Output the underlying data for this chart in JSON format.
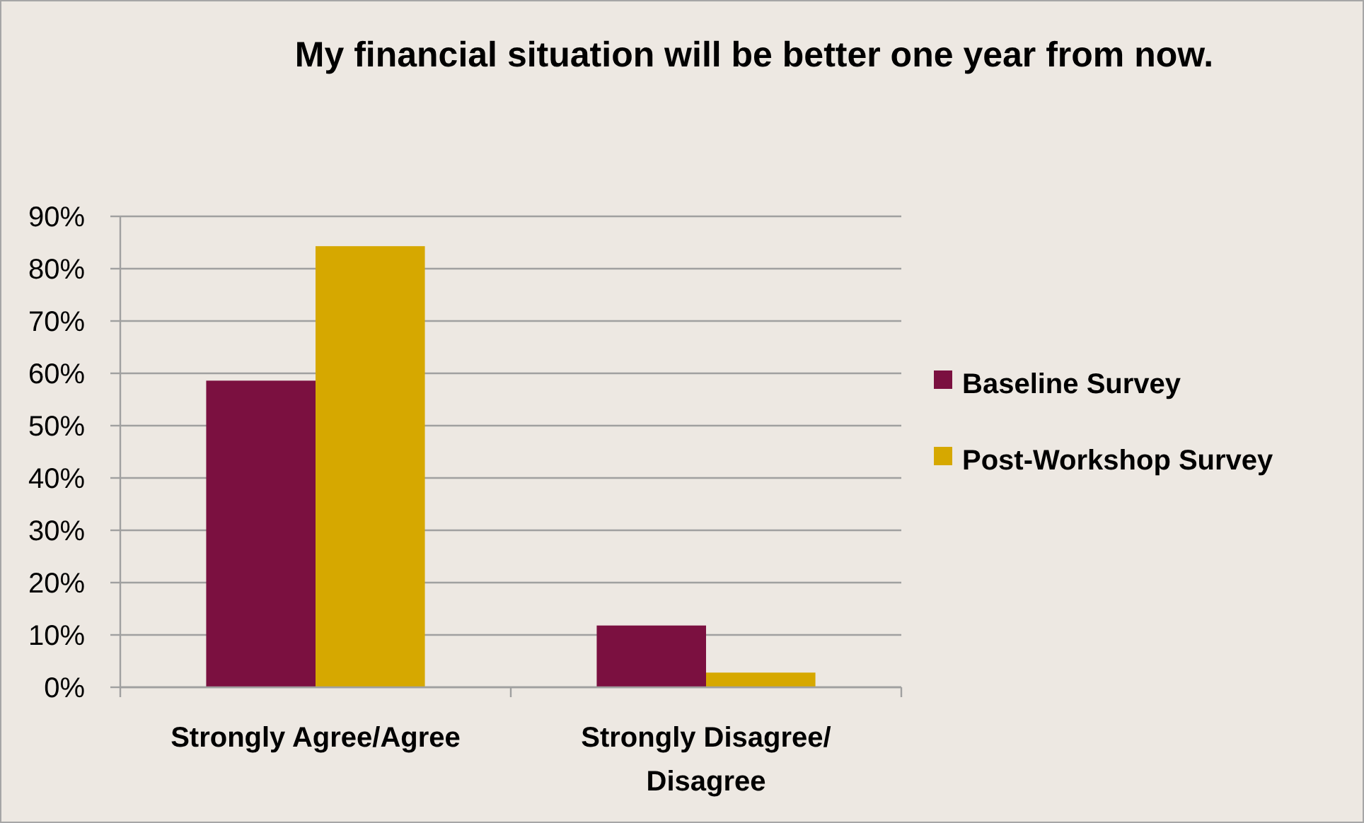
{
  "chart_data": {
    "type": "bar",
    "title": "My financial situation will be better one year from now.",
    "categories": [
      "Strongly Agree/Agree",
      "Strongly Disagree/ Disagree"
    ],
    "series": [
      {
        "name": "Baseline Survey",
        "color": "#7b1040",
        "values": [
          58.6,
          11.8
        ]
      },
      {
        "name": "Post-Workshop Survey",
        "color": "#d6a800",
        "values": [
          84.3,
          2.8
        ]
      }
    ],
    "ylim": [
      0,
      90
    ],
    "yticks": [
      {
        "value": 0,
        "label": "0%"
      },
      {
        "value": 10,
        "label": "10%"
      },
      {
        "value": 20,
        "label": "20%"
      },
      {
        "value": 30,
        "label": "30%"
      },
      {
        "value": 40,
        "label": "40%"
      },
      {
        "value": 50,
        "label": "50%"
      },
      {
        "value": 60,
        "label": "60%"
      },
      {
        "value": 70,
        "label": "70%"
      },
      {
        "value": 80,
        "label": "80%"
      },
      {
        "value": 90,
        "label": "90%"
      }
    ],
    "grid": "y",
    "legend": "right"
  }
}
